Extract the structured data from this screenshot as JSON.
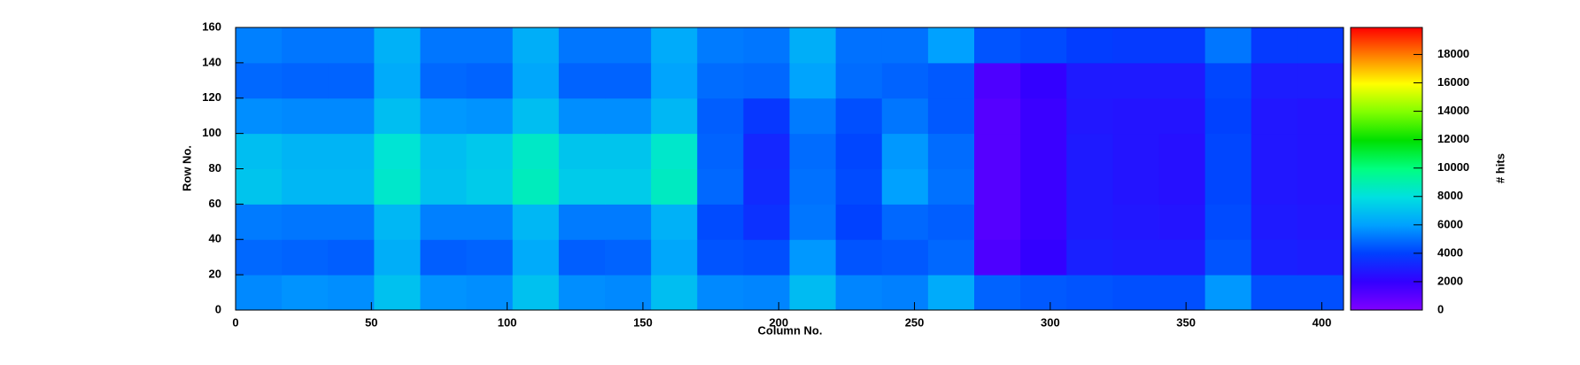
{
  "chart_data": {
    "type": "heatmap",
    "xlabel": "Column No.",
    "ylabel": "Row No.",
    "zlabel": "# hits",
    "xlim": [
      0,
      408
    ],
    "ylim": [
      0,
      160
    ],
    "zlim": [
      0,
      19900
    ],
    "xticks": [
      0,
      50,
      100,
      150,
      200,
      250,
      300,
      350,
      400
    ],
    "yticks": [
      0,
      20,
      40,
      60,
      80,
      100,
      120,
      140,
      160
    ],
    "zticks": [
      0,
      2000,
      4000,
      6000,
      8000,
      10000,
      12000,
      14000,
      16000,
      18000
    ],
    "colorscale": [
      "#7f00ff",
      "#3300ff",
      "#0040ff",
      "#00a0ff",
      "#00e0e0",
      "#00ff80",
      "#00e000",
      "#80ff00",
      "#ffff00",
      "#ff8000",
      "#ff0000"
    ],
    "xbins": [
      0,
      17,
      34,
      51,
      68,
      85,
      102,
      119,
      136,
      153,
      170,
      187,
      204,
      221,
      238,
      255,
      272,
      289,
      306,
      323,
      340,
      357,
      374,
      391,
      408
    ],
    "ybins": [
      0,
      20,
      40,
      60,
      80,
      100,
      120,
      140,
      160
    ],
    "z": [
      [
        5500,
        5700,
        5600,
        7000,
        5700,
        5600,
        7000,
        5600,
        5500,
        6900,
        5500,
        5400,
        6800,
        5400,
        5300,
        6300,
        4700,
        4500,
        4400,
        4300,
        4300,
        5800,
        4300,
        4300
      ],
      [
        4800,
        4700,
        4600,
        6400,
        4600,
        4700,
        6300,
        4600,
        4700,
        6200,
        4400,
        4300,
        5800,
        4400,
        4500,
        4800,
        1300,
        2000,
        3000,
        2900,
        2900,
        4400,
        3000,
        2900
      ],
      [
        5200,
        5100,
        5100,
        6700,
        5300,
        5300,
        6700,
        5200,
        5200,
        6500,
        4200,
        3500,
        5100,
        4000,
        4800,
        4600,
        1100,
        1800,
        2800,
        2700,
        2600,
        4200,
        2800,
        2700
      ],
      [
        7100,
        6700,
        6700,
        8400,
        7000,
        7300,
        8700,
        7300,
        7300,
        8600,
        4800,
        3300,
        5000,
        4200,
        6000,
        5000,
        1100,
        1800,
        2800,
        2600,
        2500,
        4100,
        2700,
        2600
      ],
      [
        6900,
        6600,
        6600,
        8200,
        6900,
        7200,
        8500,
        7100,
        7100,
        8400,
        4700,
        3200,
        4900,
        4100,
        5800,
        4900,
        1100,
        1800,
        2800,
        2600,
        2500,
        4100,
        2700,
        2600
      ],
      [
        5600,
        5500,
        5500,
        6900,
        5800,
        5700,
        6900,
        5600,
        5600,
        6700,
        4600,
        3700,
        5200,
        4300,
        5100,
        4500,
        1100,
        1800,
        2700,
        2600,
        2600,
        4000,
        2700,
        2600
      ],
      [
        4800,
        4700,
        4700,
        6300,
        4800,
        4700,
        6200,
        4700,
        4700,
        6100,
        4900,
        4800,
        6100,
        4900,
        4700,
        4500,
        1300,
        2000,
        2800,
        2800,
        2800,
        4100,
        2900,
        2900
      ],
      [
        5300,
        5100,
        5100,
        6500,
        5100,
        5100,
        6400,
        5100,
        5100,
        6300,
        5200,
        5100,
        6400,
        5000,
        5000,
        6000,
        4400,
        4200,
        3900,
        3800,
        3800,
        5100,
        3800,
        3800
      ]
    ]
  }
}
